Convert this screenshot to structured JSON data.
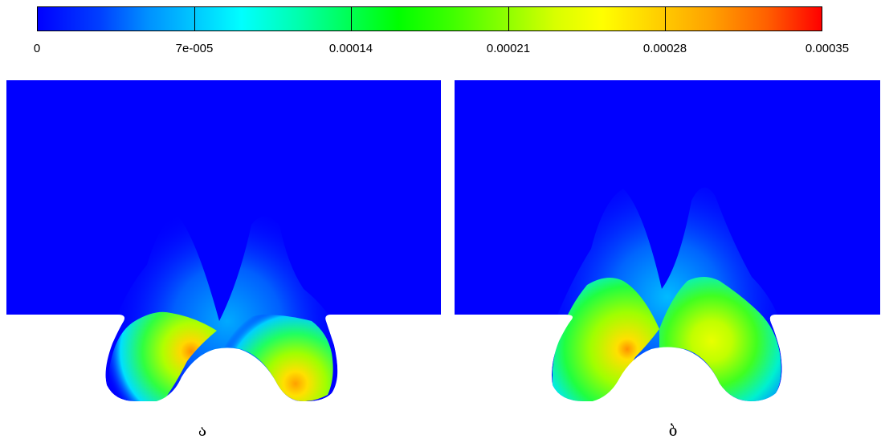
{
  "colorbar": {
    "ticks": [
      "0",
      "7e-005",
      "0.00014",
      "0.00021",
      "0.00028",
      "0.00035"
    ],
    "min": 0,
    "max": 0.00035,
    "colormap": [
      "#0000ff",
      "#00ffff",
      "#00ff00",
      "#ffff00",
      "#ff0000"
    ]
  },
  "panels": [
    {
      "label": "ა"
    },
    {
      "label": "ბ"
    }
  ],
  "colors": {
    "background_field": "#0000ff",
    "region_outside": "#ffffff"
  }
}
